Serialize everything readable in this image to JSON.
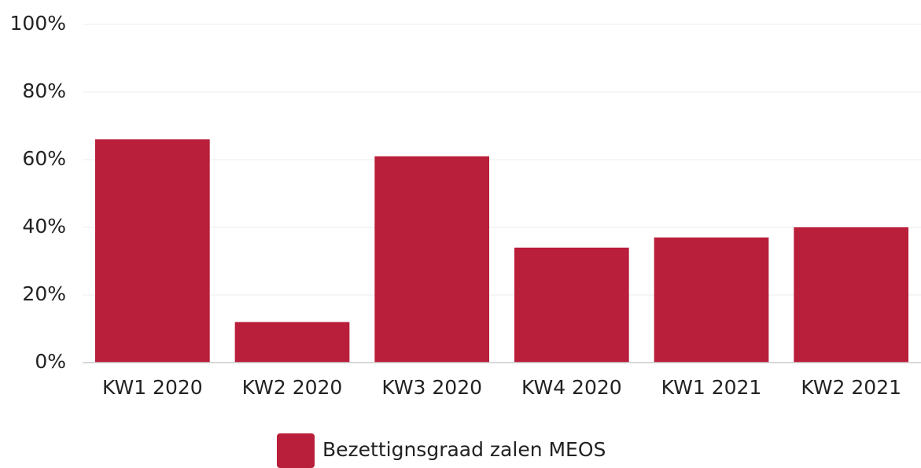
{
  "chart_data": {
    "type": "bar",
    "categories": [
      "KW1 2020",
      "KW2 2020",
      "KW3 2020",
      "KW4 2020",
      "KW1 2021",
      "KW2 2021"
    ],
    "series": [
      {
        "name": "Bezettignsgraad zalen MEOS",
        "color": "#b91e3a",
        "values": [
          66,
          12,
          61,
          34,
          37,
          40
        ]
      }
    ],
    "ylim": [
      0,
      100
    ],
    "yticks": [
      {
        "value": 0,
        "label": "0%"
      },
      {
        "value": 20,
        "label": "20%"
      },
      {
        "value": 40,
        "label": "40%"
      },
      {
        "value": 60,
        "label": "60%"
      },
      {
        "value": 80,
        "label": "80%"
      },
      {
        "value": 100,
        "label": "100%"
      }
    ],
    "grid": true,
    "legend": "bottom"
  }
}
